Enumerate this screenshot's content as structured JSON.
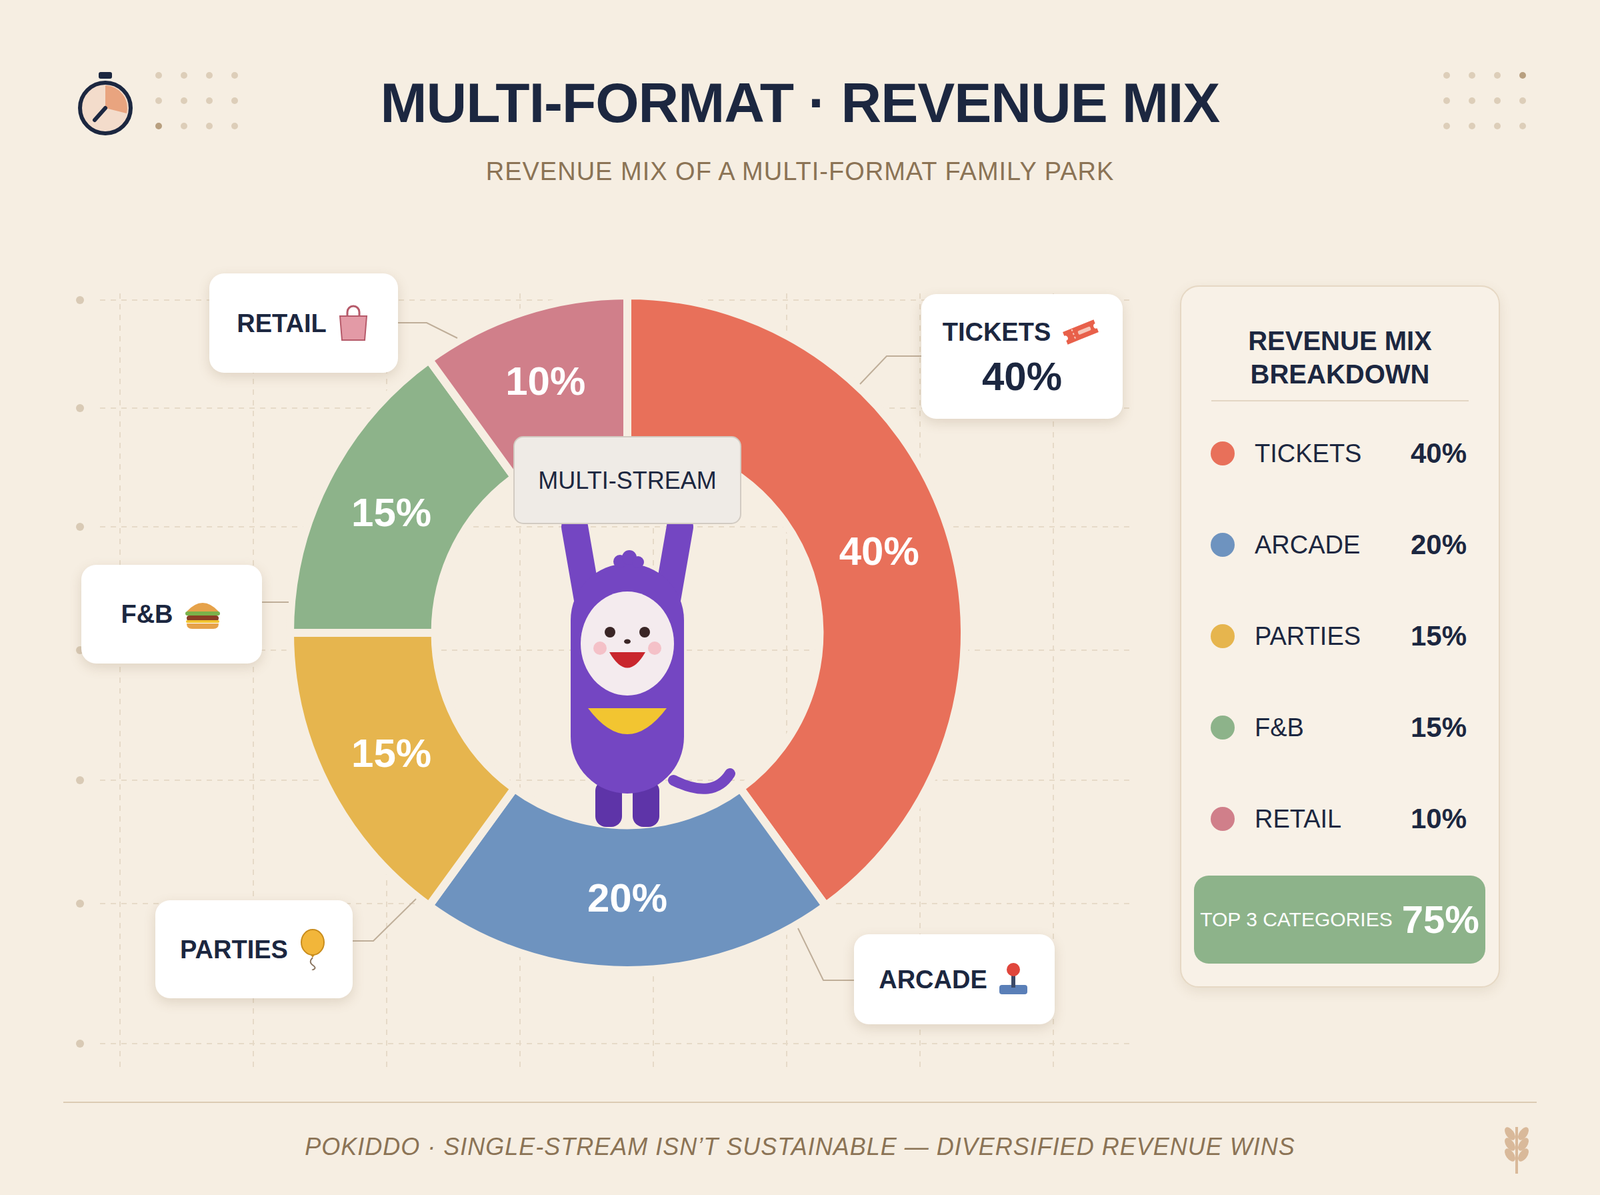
{
  "header": {
    "title": "MULTI-FORMAT · REVENUE MIX",
    "subtitle": "REVENUE MIX OF A MULTI-FORMAT FAMILY PARK"
  },
  "chart_data": {
    "type": "pie",
    "categories": [
      "TICKETS",
      "ARCADE",
      "PARTIES",
      "F&B",
      "RETAIL"
    ],
    "values": [
      40,
      20,
      15,
      15,
      10
    ],
    "value_labels": [
      "40%",
      "20%",
      "15%",
      "15%",
      "10%"
    ],
    "colors": [
      "#e8705a",
      "#6e93bf",
      "#e6b54e",
      "#8db38a",
      "#d07f8a"
    ],
    "data_labels": true
  },
  "center_sign": "MULTI-STREAM",
  "callouts": [
    {
      "text": "TICKETS",
      "value_label": "40%"
    },
    {
      "text": "ARCADE"
    },
    {
      "text": "PARTIES"
    },
    {
      "text": "F&B"
    },
    {
      "text": "RETAIL"
    }
  ],
  "panel": {
    "title": "REVENUE MIX BREAKDOWN",
    "summary": {
      "label": "TOP 3 CATEGORIES",
      "value": 75,
      "value_label": "75%"
    }
  },
  "footer": "POKIDDO · SINGLE-STREAM ISN’T SUSTAINABLE — DIVERSIFIED REVENUE WINS"
}
